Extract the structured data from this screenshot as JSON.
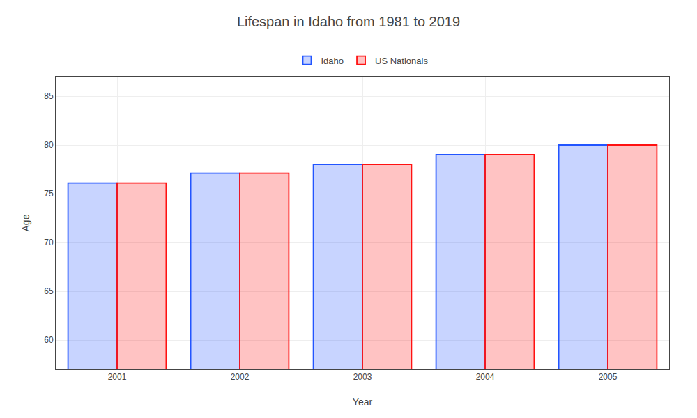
{
  "chart_data": {
    "type": "bar",
    "title": "Lifespan in Idaho from 1981 to 2019",
    "x_label": "Year",
    "y_label": "Age",
    "categories": [
      "2001",
      "2002",
      "2003",
      "2004",
      "2005"
    ],
    "series": [
      {
        "name": "Idaho",
        "color": "#2255ff",
        "values": [
          76.1,
          77.1,
          78.0,
          79.0,
          80.0
        ]
      },
      {
        "name": "US Nationals",
        "color": "#ff1111",
        "values": [
          76.1,
          77.1,
          78.0,
          79.0,
          80.0
        ]
      }
    ],
    "ylim": [
      57,
      87
    ],
    "yticks": [
      60,
      65,
      70,
      75,
      80,
      85
    ],
    "grid": true,
    "legend": "top"
  }
}
